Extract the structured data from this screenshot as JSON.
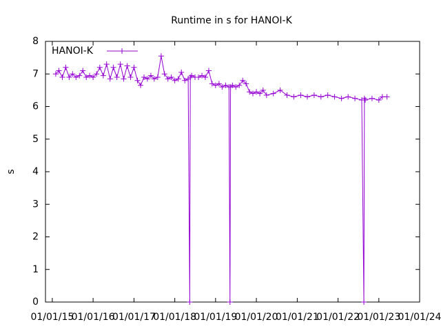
{
  "chart_data": {
    "type": "line",
    "title": "Runtime in s for HANOI-K",
    "ylabel": "s",
    "x": [
      "02/01/15",
      "03/01/15",
      "04/01/15",
      "05/01/15",
      "06/01/15",
      "07/01/15",
      "08/01/15",
      "09/01/15",
      "10/01/15",
      "11/01/15",
      "12/01/15",
      "01/01/16",
      "02/01/16",
      "03/01/16",
      "04/01/16",
      "05/01/16",
      "06/01/16",
      "07/01/16",
      "08/01/16",
      "09/01/16",
      "10/01/16",
      "11/01/16",
      "12/01/16",
      "01/01/17",
      "02/01/17",
      "03/01/17",
      "04/01/17",
      "05/01/17",
      "06/01/17",
      "07/01/17",
      "08/01/17",
      "09/01/17",
      "10/01/17",
      "11/01/17",
      "12/01/17",
      "01/01/18",
      "02/01/18",
      "03/01/18",
      "04/01/18",
      "05/01/18",
      "05/15/18",
      "05/20/18",
      "06/01/18",
      "07/01/18",
      "08/01/18",
      "09/01/18",
      "10/01/18",
      "11/01/18",
      "12/01/18",
      "01/01/19",
      "02/01/19",
      "03/01/19",
      "04/01/19",
      "05/01/19",
      "05/10/19",
      "05/15/19",
      "06/01/19",
      "07/01/19",
      "08/01/19",
      "09/01/19",
      "10/01/19",
      "11/01/19",
      "12/01/19",
      "01/01/20",
      "02/01/20",
      "03/01/20",
      "04/01/20",
      "06/01/20",
      "08/01/20",
      "10/01/20",
      "12/01/20",
      "02/01/21",
      "04/01/21",
      "06/01/21",
      "08/01/21",
      "10/01/21",
      "12/01/21",
      "02/01/22",
      "04/01/22",
      "06/01/22",
      "08/01/22",
      "08/20/22",
      "08/25/22",
      "09/01/22",
      "11/01/22",
      "01/01/23",
      "02/01/23",
      "03/15/23"
    ],
    "series": [
      {
        "name": "HANOI-K",
        "color": "#9400d3",
        "values": [
          7.0,
          7.1,
          6.9,
          7.2,
          6.9,
          7.0,
          6.9,
          6.95,
          7.1,
          6.9,
          6.95,
          6.9,
          7.0,
          7.2,
          6.95,
          7.3,
          6.85,
          7.2,
          6.9,
          7.3,
          6.85,
          7.25,
          6.9,
          7.2,
          6.8,
          6.65,
          6.9,
          6.85,
          6.95,
          6.85,
          6.9,
          7.55,
          7.0,
          6.85,
          6.9,
          6.8,
          6.85,
          7.05,
          6.8,
          6.85,
          0,
          6.9,
          6.95,
          6.9,
          6.9,
          6.95,
          6.9,
          7.1,
          6.7,
          6.65,
          6.7,
          6.6,
          6.65,
          6.6,
          0,
          6.6,
          6.65,
          6.6,
          6.65,
          6.8,
          6.7,
          6.45,
          6.4,
          6.45,
          6.4,
          6.5,
          6.35,
          6.4,
          6.5,
          6.35,
          6.3,
          6.35,
          6.3,
          6.35,
          6.3,
          6.35,
          6.3,
          6.25,
          6.3,
          6.25,
          6.2,
          0,
          6.25,
          6.2,
          6.25,
          6.2,
          6.3,
          6.3
        ]
      }
    ],
    "xlim": [
      "11/01/14",
      "01/01/24"
    ],
    "xticks": [
      "01/01/15",
      "01/01/16",
      "01/01/17",
      "01/01/18",
      "01/01/19",
      "01/01/20",
      "01/01/21",
      "01/01/22",
      "01/01/23",
      "01/01/24"
    ],
    "ylim": [
      0,
      8
    ],
    "yticks": [
      0,
      1,
      2,
      3,
      4,
      5,
      6,
      7,
      8
    ],
    "legend": "top-left",
    "grid": false
  }
}
